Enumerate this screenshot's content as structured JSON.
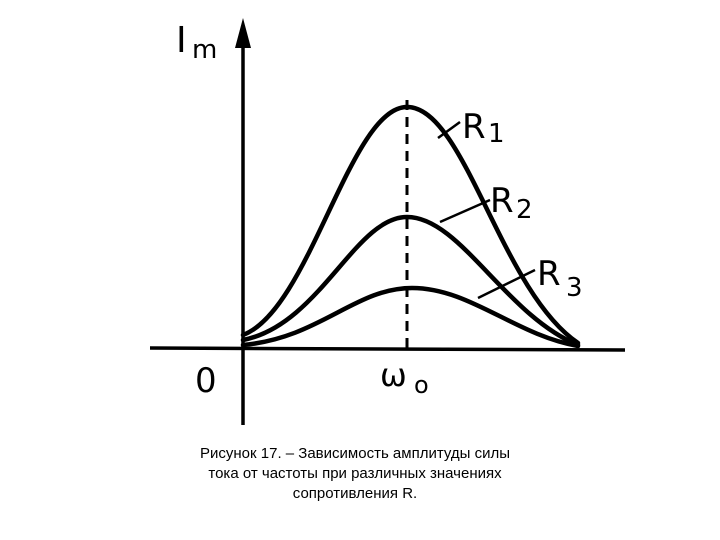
{
  "y_axis_label": {
    "main": "I",
    "sub": "m"
  },
  "origin_label": "0",
  "x_axis_label": {
    "main": "ω",
    "sub": "o"
  },
  "curves": [
    {
      "label": {
        "main": "R",
        "sub": "1"
      }
    },
    {
      "label": {
        "main": "R",
        "sub": "2"
      }
    },
    {
      "label": {
        "main": "R",
        "sub": "3"
      }
    }
  ],
  "caption": [
    "Рисунок 17.   – Зависимость амплитуды силы",
    "тока от частоты при различных значениях",
    "сопротивления R."
  ]
}
